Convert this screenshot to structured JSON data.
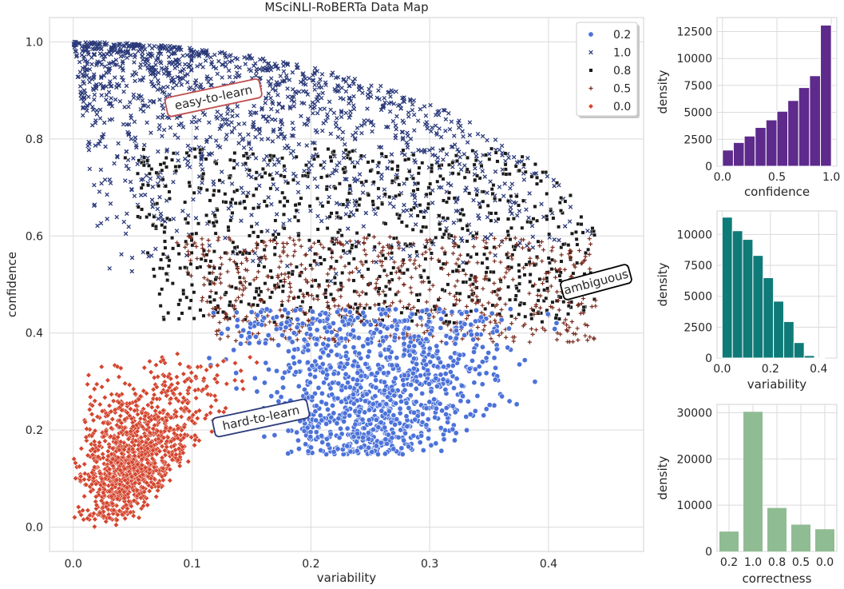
{
  "chart_data": [
    {
      "type": "scatter",
      "title": "MSciNLI-RoBERTa Data Map",
      "xlabel": "variability",
      "ylabel": "confidence",
      "xlim": [
        -0.02,
        0.48
      ],
      "ylim": [
        -0.05,
        1.05
      ],
      "xticks": [
        "0.0",
        "0.1",
        "0.2",
        "0.3",
        "0.4"
      ],
      "yticks": [
        "0.0",
        "0.2",
        "0.4",
        "0.6",
        "0.8",
        "1.0"
      ],
      "grid": true,
      "legend_position": "top-right",
      "legend": [
        {
          "label": "0.2",
          "marker": "circle",
          "color": "#4c72d9"
        },
        {
          "label": "1.0",
          "marker": "x",
          "color": "#2b3a7a"
        },
        {
          "label": "0.8",
          "marker": "square",
          "color": "#1a1a1a"
        },
        {
          "label": "0.5",
          "marker": "plus",
          "color": "#7a2a1e"
        },
        {
          "label": "0.0",
          "marker": "diamond",
          "color": "#d4452e"
        }
      ],
      "annotations": [
        {
          "text": "easy-to-learn",
          "x": 0.118,
          "y": 0.885,
          "rotation": -12,
          "border": "#c05050"
        },
        {
          "text": "ambiguous",
          "x": 0.44,
          "y": 0.505,
          "rotation": -15,
          "border": "#000000"
        },
        {
          "text": "hard-to-learn",
          "x": 0.158,
          "y": 0.225,
          "rotation": -12,
          "border": "#2b3a7a"
        }
      ],
      "regions": [
        {
          "series": "1.0",
          "description_xrange": [
            0.0,
            0.34
          ],
          "yrange": [
            0.5,
            1.0
          ]
        },
        {
          "series": "0.8",
          "description_xrange": [
            0.02,
            0.42
          ],
          "yrange": [
            0.4,
            0.78
          ]
        },
        {
          "series": "0.5",
          "description_xrange": [
            0.05,
            0.44
          ],
          "yrange": [
            0.4,
            0.6
          ]
        },
        {
          "series": "0.2",
          "description_xrange": [
            0.06,
            0.4
          ],
          "yrange": [
            0.15,
            0.45
          ]
        },
        {
          "series": "0.0",
          "description_xrange": [
            0.0,
            0.18
          ],
          "yrange": [
            0.0,
            0.36
          ]
        }
      ]
    },
    {
      "type": "bar",
      "xlabel": "confidence",
      "ylabel": "density",
      "color": "#5e2a8c",
      "bin_edges": [
        0.0,
        0.1,
        0.2,
        0.3,
        0.4,
        0.5,
        0.6,
        0.7,
        0.8,
        0.9,
        1.0
      ],
      "values": [
        1500,
        2200,
        2800,
        3600,
        4300,
        5100,
        6100,
        7300,
        8400,
        13100
      ],
      "xlim": [
        -0.05,
        1.05
      ],
      "ylim": [
        0,
        13800
      ],
      "xticks": [
        "0.0",
        "0.5",
        "1.0"
      ],
      "yticks": [
        "0",
        "2500",
        "5000",
        "7500",
        "10000",
        "12500"
      ]
    },
    {
      "type": "bar",
      "xlabel": "variability",
      "ylabel": "density",
      "color": "#0f7b78",
      "bin_edges": [
        0.0,
        0.0425,
        0.085,
        0.1275,
        0.17,
        0.2125,
        0.255,
        0.2975,
        0.34,
        0.3825,
        0.425
      ],
      "values": [
        11400,
        10300,
        9600,
        8300,
        6500,
        4600,
        2950,
        1250,
        200,
        15
      ],
      "xlim": [
        -0.021,
        0.475
      ],
      "ylim": [
        0,
        11900
      ],
      "xticks": [
        "0.0",
        "0.2",
        "0.4"
      ],
      "yticks": [
        "0",
        "2500",
        "5000",
        "7500",
        "10000"
      ]
    },
    {
      "type": "bar",
      "xlabel": "correctness",
      "ylabel": "density",
      "color": "#8fbc93",
      "categories": [
        "0.2",
        "1.0",
        "0.8",
        "0.5",
        "0.0"
      ],
      "values": [
        4300,
        30200,
        9400,
        5800,
        4800
      ],
      "ylim": [
        0,
        31800
      ],
      "yticks": [
        "0",
        "10000",
        "20000",
        "30000"
      ]
    }
  ]
}
